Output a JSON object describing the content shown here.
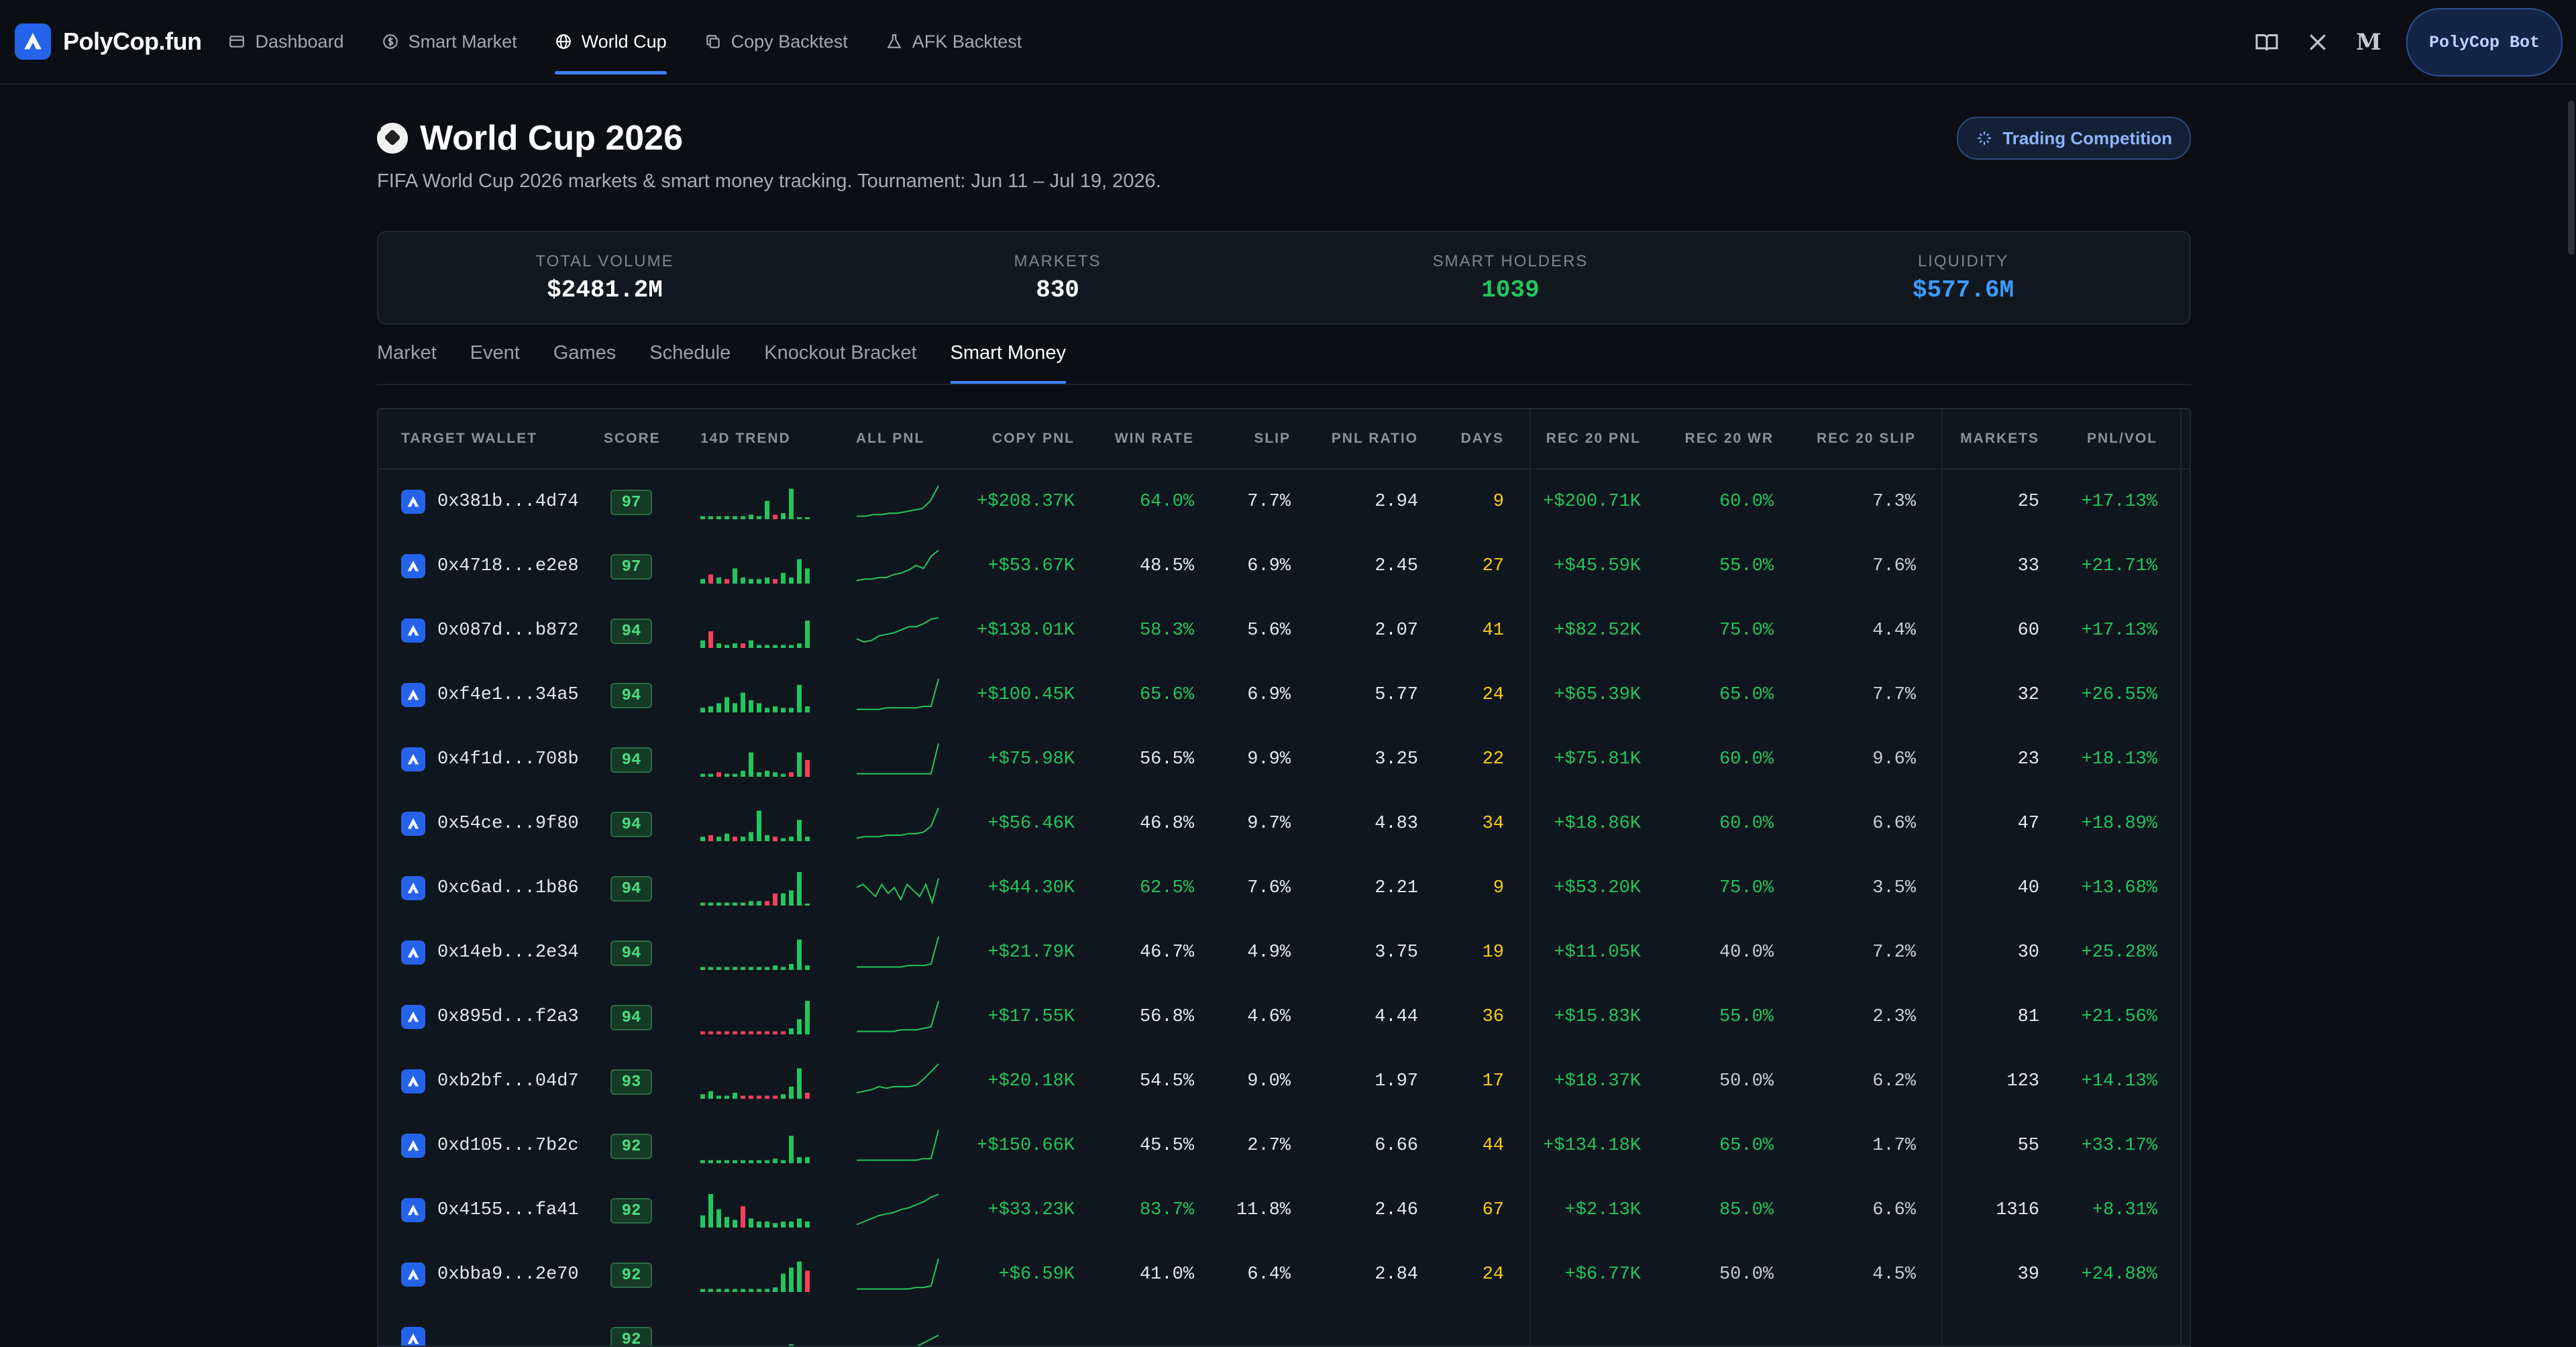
{
  "nav": {
    "brand": "PolyCop.fun",
    "items": [
      {
        "label": "Dashboard",
        "icon": "dashboard-icon",
        "active": false
      },
      {
        "label": "Smart Market",
        "icon": "dollar-circle-icon",
        "active": false
      },
      {
        "label": "World Cup",
        "icon": "globe-icon",
        "active": true
      },
      {
        "label": "Copy Backtest",
        "icon": "copy-icon",
        "active": false
      },
      {
        "label": "AFK Backtest",
        "icon": "flask-icon",
        "active": false
      }
    ],
    "right_icons": [
      "book-icon",
      "x-logo-icon",
      "medium-logo-icon"
    ],
    "bot_button": "PolyCop Bot"
  },
  "header": {
    "title": "World Cup 2026",
    "subtitle": "FIFA World Cup 2026 markets & smart money tracking. Tournament: Jun 11 – Jul 19, 2026.",
    "competition_button": "Trading Competition"
  },
  "stats": [
    {
      "label": "TOTAL VOLUME",
      "value": "$2481.2M",
      "color": "#ffffff"
    },
    {
      "label": "MARKETS",
      "value": "830",
      "color": "#ffffff"
    },
    {
      "label": "SMART HOLDERS",
      "value": "1039",
      "color": "#22c55e"
    },
    {
      "label": "LIQUIDITY",
      "value": "$577.6M",
      "color": "#3b9bff"
    }
  ],
  "tabs": [
    {
      "label": "Market",
      "active": false
    },
    {
      "label": "Event",
      "active": false
    },
    {
      "label": "Games",
      "active": false
    },
    {
      "label": "Schedule",
      "active": false
    },
    {
      "label": "Knockout Bracket",
      "active": false
    },
    {
      "label": "Smart Money",
      "active": true
    }
  ],
  "table": {
    "headers": [
      "TARGET WALLET",
      "SCORE",
      "14D TREND",
      "ALL PNL",
      "COPY PNL",
      "WIN RATE",
      "SLIP",
      "PNL RATIO",
      "DAYS",
      "REC 20 PNL",
      "REC 20 WR",
      "REC 20 SLIP",
      "MARKETS",
      "PNL/VOL"
    ],
    "rows": [
      {
        "wallet": "0x381b...4d74",
        "score": "97",
        "copy_pnl": "+$208.37K",
        "win_rate": "64.0%",
        "win_good": true,
        "slip": "7.7%",
        "pnl_ratio": "2.94",
        "days": "9",
        "rec_pnl": "+$200.71K",
        "rec_wr": "60.0%",
        "rec_wr_good": true,
        "rec_slip": "7.3%",
        "markets": "25",
        "pnl_vol": "+17.13%",
        "trend": [
          2,
          2,
          2,
          2,
          2,
          2,
          3,
          2,
          12,
          -3,
          4,
          20,
          0,
          0
        ],
        "pnl": [
          2,
          2,
          3,
          3,
          4,
          4,
          5,
          6,
          7,
          12,
          22
        ]
      },
      {
        "wallet": "0x4718...e2e8",
        "score": "97",
        "copy_pnl": "+$53.67K",
        "win_rate": "48.5%",
        "win_good": false,
        "slip": "6.9%",
        "pnl_ratio": "2.45",
        "days": "27",
        "rec_pnl": "+$45.59K",
        "rec_wr": "55.0%",
        "rec_wr_good": true,
        "rec_slip": "7.6%",
        "markets": "33",
        "pnl_vol": "+21.71%",
        "trend": [
          3,
          -6,
          4,
          -3,
          10,
          4,
          3,
          3,
          4,
          -3,
          7,
          4,
          16,
          10
        ],
        "pnl": [
          2,
          3,
          3,
          4,
          4,
          6,
          7,
          9,
          12,
          10,
          18,
          22
        ]
      },
      {
        "wallet": "0x087d...b872",
        "score": "94",
        "copy_pnl": "+$138.01K",
        "win_rate": "58.3%",
        "win_good": true,
        "slip": "5.6%",
        "pnl_ratio": "2.07",
        "days": "41",
        "rec_pnl": "+$82.52K",
        "rec_wr": "75.0%",
        "rec_wr_good": true,
        "rec_slip": "4.4%",
        "markets": "60",
        "pnl_vol": "+17.13%",
        "trend": [
          5,
          -11,
          3,
          2,
          3,
          -3,
          5,
          2,
          2,
          2,
          2,
          2,
          3,
          18
        ],
        "pnl": [
          6,
          4,
          5,
          8,
          9,
          10,
          12,
          14,
          14,
          16,
          19,
          20
        ]
      },
      {
        "wallet": "0xf4e1...34a5",
        "score": "94",
        "copy_pnl": "+$100.45K",
        "win_rate": "65.6%",
        "win_good": true,
        "slip": "6.9%",
        "pnl_ratio": "5.77",
        "days": "24",
        "rec_pnl": "+$65.39K",
        "rec_wr": "65.0%",
        "rec_wr_good": true,
        "rec_slip": "7.7%",
        "markets": "32",
        "pnl_vol": "+26.55%",
        "trend": [
          3,
          4,
          6,
          10,
          6,
          13,
          8,
          6,
          3,
          4,
          3,
          3,
          18,
          4
        ],
        "pnl": [
          2,
          2,
          2,
          2,
          3,
          3,
          3,
          3,
          3,
          4,
          4,
          22
        ]
      },
      {
        "wallet": "0x4f1d...708b",
        "score": "94",
        "copy_pnl": "+$75.98K",
        "win_rate": "56.5%",
        "win_good": false,
        "slip": "9.9%",
        "pnl_ratio": "3.25",
        "days": "22",
        "rec_pnl": "+$75.81K",
        "rec_wr": "60.0%",
        "rec_wr_good": true,
        "rec_slip": "9.6%",
        "markets": "23",
        "pnl_vol": "+18.13%",
        "trend": [
          2,
          2,
          -3,
          2,
          2,
          4,
          16,
          3,
          4,
          3,
          2,
          -3,
          16,
          -11
        ],
        "pnl": [
          2,
          2,
          2,
          2,
          2,
          2,
          2,
          2,
          2,
          2,
          2,
          22
        ]
      },
      {
        "wallet": "0x54ce...9f80",
        "score": "94",
        "copy_pnl": "+$56.46K",
        "win_rate": "46.8%",
        "win_good": false,
        "slip": "9.7%",
        "pnl_ratio": "4.83",
        "days": "34",
        "rec_pnl": "+$18.86K",
        "rec_wr": "60.0%",
        "rec_wr_good": true,
        "rec_slip": "6.6%",
        "markets": "47",
        "pnl_vol": "+18.89%",
        "trend": [
          3,
          -4,
          3,
          5,
          -3,
          3,
          6,
          20,
          4,
          -3,
          2,
          3,
          14,
          3
        ],
        "pnl": [
          2,
          3,
          3,
          3,
          4,
          4,
          4,
          5,
          5,
          6,
          10,
          22
        ]
      },
      {
        "wallet": "0xc6ad...1b86",
        "score": "94",
        "copy_pnl": "+$44.30K",
        "win_rate": "62.5%",
        "win_good": true,
        "slip": "7.6%",
        "pnl_ratio": "2.21",
        "days": "9",
        "rec_pnl": "+$53.20K",
        "rec_wr": "75.0%",
        "rec_wr_good": true,
        "rec_slip": "3.5%",
        "markets": "40",
        "pnl_vol": "+13.68%",
        "trend": [
          2,
          2,
          2,
          2,
          2,
          2,
          3,
          3,
          -3,
          -8,
          8,
          10,
          22,
          0
        ],
        "pnl": [
          12,
          14,
          10,
          6,
          14,
          8,
          12,
          4,
          14,
          10,
          6,
          14,
          2,
          18
        ]
      },
      {
        "wallet": "0x14eb...2e34",
        "score": "94",
        "copy_pnl": "+$21.79K",
        "win_rate": "46.7%",
        "win_good": false,
        "slip": "4.9%",
        "pnl_ratio": "3.75",
        "days": "19",
        "rec_pnl": "+$11.05K",
        "rec_wr": "40.0%",
        "rec_wr_good": false,
        "rec_slip": "7.2%",
        "markets": "30",
        "pnl_vol": "+25.28%",
        "trend": [
          2,
          2,
          2,
          2,
          2,
          2,
          2,
          2,
          2,
          3,
          2,
          4,
          20,
          3
        ],
        "pnl": [
          2,
          2,
          2,
          2,
          2,
          2,
          2,
          3,
          3,
          3,
          4,
          22
        ]
      },
      {
        "wallet": "0x895d...f2a3",
        "score": "94",
        "copy_pnl": "+$17.55K",
        "win_rate": "56.8%",
        "win_good": false,
        "slip": "4.6%",
        "pnl_ratio": "4.44",
        "days": "36",
        "rec_pnl": "+$15.83K",
        "rec_wr": "55.0%",
        "rec_wr_good": true,
        "rec_slip": "2.3%",
        "markets": "81",
        "pnl_vol": "+21.56%",
        "trend": [
          -2,
          -2,
          -2,
          -2,
          -2,
          -2,
          -2,
          -2,
          -2,
          -2,
          -2,
          4,
          10,
          22
        ],
        "pnl": [
          2,
          2,
          2,
          2,
          2,
          2,
          3,
          3,
          3,
          4,
          5,
          22
        ]
      },
      {
        "wallet": "0xb2bf...04d7",
        "score": "93",
        "copy_pnl": "+$20.18K",
        "win_rate": "54.5%",
        "win_good": false,
        "slip": "9.0%",
        "pnl_ratio": "1.97",
        "days": "17",
        "rec_pnl": "+$18.37K",
        "rec_wr": "50.0%",
        "rec_wr_good": false,
        "rec_slip": "6.2%",
        "markets": "123",
        "pnl_vol": "+14.13%",
        "trend": [
          3,
          5,
          2,
          2,
          4,
          -2,
          -2,
          -2,
          -2,
          -2,
          3,
          8,
          20,
          -4
        ],
        "pnl": [
          4,
          5,
          6,
          8,
          7,
          8,
          8,
          8,
          9,
          13,
          18,
          23
        ]
      },
      {
        "wallet": "0xd105...7b2c",
        "score": "92",
        "copy_pnl": "+$150.66K",
        "win_rate": "45.5%",
        "win_good": false,
        "slip": "2.7%",
        "pnl_ratio": "6.66",
        "days": "44",
        "rec_pnl": "+$134.18K",
        "rec_wr": "65.0%",
        "rec_wr_good": true,
        "rec_slip": "1.7%",
        "markets": "55",
        "pnl_vol": "+33.17%",
        "trend": [
          2,
          2,
          2,
          2,
          2,
          2,
          2,
          2,
          2,
          3,
          2,
          18,
          4,
          4
        ],
        "pnl": [
          2,
          2,
          2,
          2,
          2,
          2,
          2,
          2,
          2,
          3,
          3,
          22
        ]
      },
      {
        "wallet": "0x4155...fa41",
        "score": "92",
        "copy_pnl": "+$33.23K",
        "win_rate": "83.7%",
        "win_good": true,
        "slip": "11.8%",
        "pnl_ratio": "2.46",
        "days": "67",
        "rec_pnl": "+$2.13K",
        "rec_wr": "85.0%",
        "rec_wr_good": true,
        "rec_slip": "6.6%",
        "markets": "1316",
        "pnl_vol": "+8.31%",
        "trend": [
          8,
          22,
          12,
          7,
          5,
          -14,
          6,
          4,
          4,
          3,
          4,
          4,
          6,
          4
        ],
        "pnl": [
          2,
          4,
          6,
          8,
          9,
          10,
          12,
          13,
          15,
          17,
          20,
          22
        ]
      },
      {
        "wallet": "0xbba9...2e70",
        "score": "92",
        "copy_pnl": "+$6.59K",
        "win_rate": "41.0%",
        "win_good": false,
        "slip": "6.4%",
        "pnl_ratio": "2.84",
        "days": "24",
        "rec_pnl": "+$6.77K",
        "rec_wr": "50.0%",
        "rec_wr_good": false,
        "rec_slip": "4.5%",
        "markets": "39",
        "pnl_vol": "+24.88%",
        "trend": [
          2,
          2,
          2,
          2,
          2,
          2,
          2,
          2,
          2,
          3,
          12,
          16,
          20,
          -14
        ],
        "pnl": [
          2,
          2,
          2,
          2,
          2,
          2,
          2,
          2,
          3,
          3,
          4,
          22
        ]
      },
      {
        "wallet": "",
        "score": "92",
        "copy_pnl": "",
        "win_rate": "",
        "win_good": true,
        "slip": "",
        "pnl_ratio": "",
        "days": "",
        "rec_pnl": "",
        "rec_wr": "",
        "rec_wr_good": true,
        "rec_slip": "",
        "markets": "",
        "pnl_vol": "",
        "trend": [
          2,
          2,
          2,
          2,
          2,
          2,
          2,
          2,
          2,
          3,
          4,
          8,
          2,
          3
        ],
        "pnl": [
          2,
          2,
          2,
          3,
          4,
          6,
          10,
          14
        ]
      }
    ]
  },
  "colors": {
    "accent": "#3b82f6",
    "green": "#22c55e",
    "red": "#f43f5e",
    "yellow": "#facc15"
  }
}
